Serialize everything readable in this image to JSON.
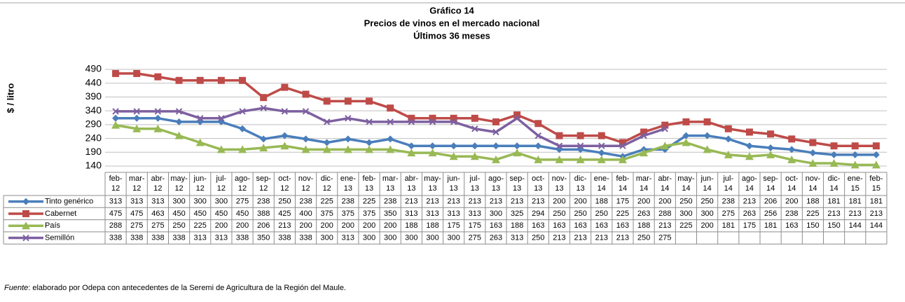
{
  "chart_data": {
    "type": "line",
    "title": [
      "Gráfico 14",
      "Precios de vinos en el mercado nacional",
      "Últimos 36 meses"
    ],
    "y_label": "$ / litro",
    "categories": [
      "feb-12",
      "mar-12",
      "abr-12",
      "may-12",
      "jun-12",
      "jul-12",
      "ago-12",
      "sep-12",
      "oct-12",
      "nov-12",
      "dic-12",
      "ene-13",
      "feb-13",
      "mar-13",
      "abr-13",
      "may-13",
      "jun-13",
      "jul-13",
      "ago-13",
      "sep-13",
      "oct-13",
      "nov-13",
      "dic-13",
      "ene-14",
      "feb-14",
      "mar-14",
      "abr-14",
      "may-14",
      "jun-14",
      "jul-14",
      "ago-14",
      "sep-14",
      "oct-14",
      "nov-14",
      "dic-14",
      "ene-15",
      "feb-15"
    ],
    "series": [
      {
        "name": "Tinto genérico",
        "color": "#4a7ebb",
        "marker": "diamond",
        "values": [
          313,
          313,
          313,
          300,
          300,
          300,
          275,
          238,
          250,
          238,
          225,
          238,
          225,
          238,
          213,
          213,
          213,
          213,
          213,
          213,
          213,
          200,
          200,
          188,
          175,
          200,
          200,
          250,
          250,
          238,
          213,
          206,
          200,
          188,
          181,
          181,
          181
        ]
      },
      {
        "name": "Cabernet",
        "color": "#be4b48",
        "marker": "square",
        "values": [
          475,
          475,
          463,
          450,
          450,
          450,
          450,
          388,
          425,
          400,
          375,
          375,
          375,
          350,
          313,
          313,
          313,
          313,
          300,
          325,
          294,
          250,
          250,
          250,
          225,
          263,
          288,
          300,
          300,
          275,
          263,
          256,
          238,
          225,
          213,
          213,
          213
        ]
      },
      {
        "name": "País",
        "color": "#98b954",
        "marker": "triangle",
        "values": [
          288,
          275,
          275,
          250,
          225,
          200,
          200,
          206,
          213,
          200,
          200,
          200,
          200,
          200,
          188,
          188,
          175,
          175,
          163,
          188,
          163,
          163,
          163,
          163,
          163,
          188,
          213,
          225,
          200,
          181,
          175,
          181,
          163,
          150,
          150,
          144,
          144
        ]
      },
      {
        "name": "Semillón",
        "color": "#7d60a0",
        "marker": "x",
        "values": [
          338,
          338,
          338,
          338,
          313,
          313,
          338,
          350,
          338,
          338,
          300,
          313,
          300,
          300,
          300,
          300,
          300,
          275,
          263,
          313,
          250,
          213,
          213,
          213,
          213,
          250,
          275,
          null,
          null,
          null,
          null,
          null,
          null,
          null,
          null,
          null,
          null
        ]
      }
    ],
    "ylim": [
      140,
      490
    ],
    "yticks": [
      140,
      190,
      240,
      290,
      340,
      390,
      440,
      490
    ],
    "grid": true
  },
  "footnote": {
    "label": "Fuente",
    "text": ": elaborado por Odepa con antecedentes de la Seremi de Agricultura de la Región del Maule."
  }
}
